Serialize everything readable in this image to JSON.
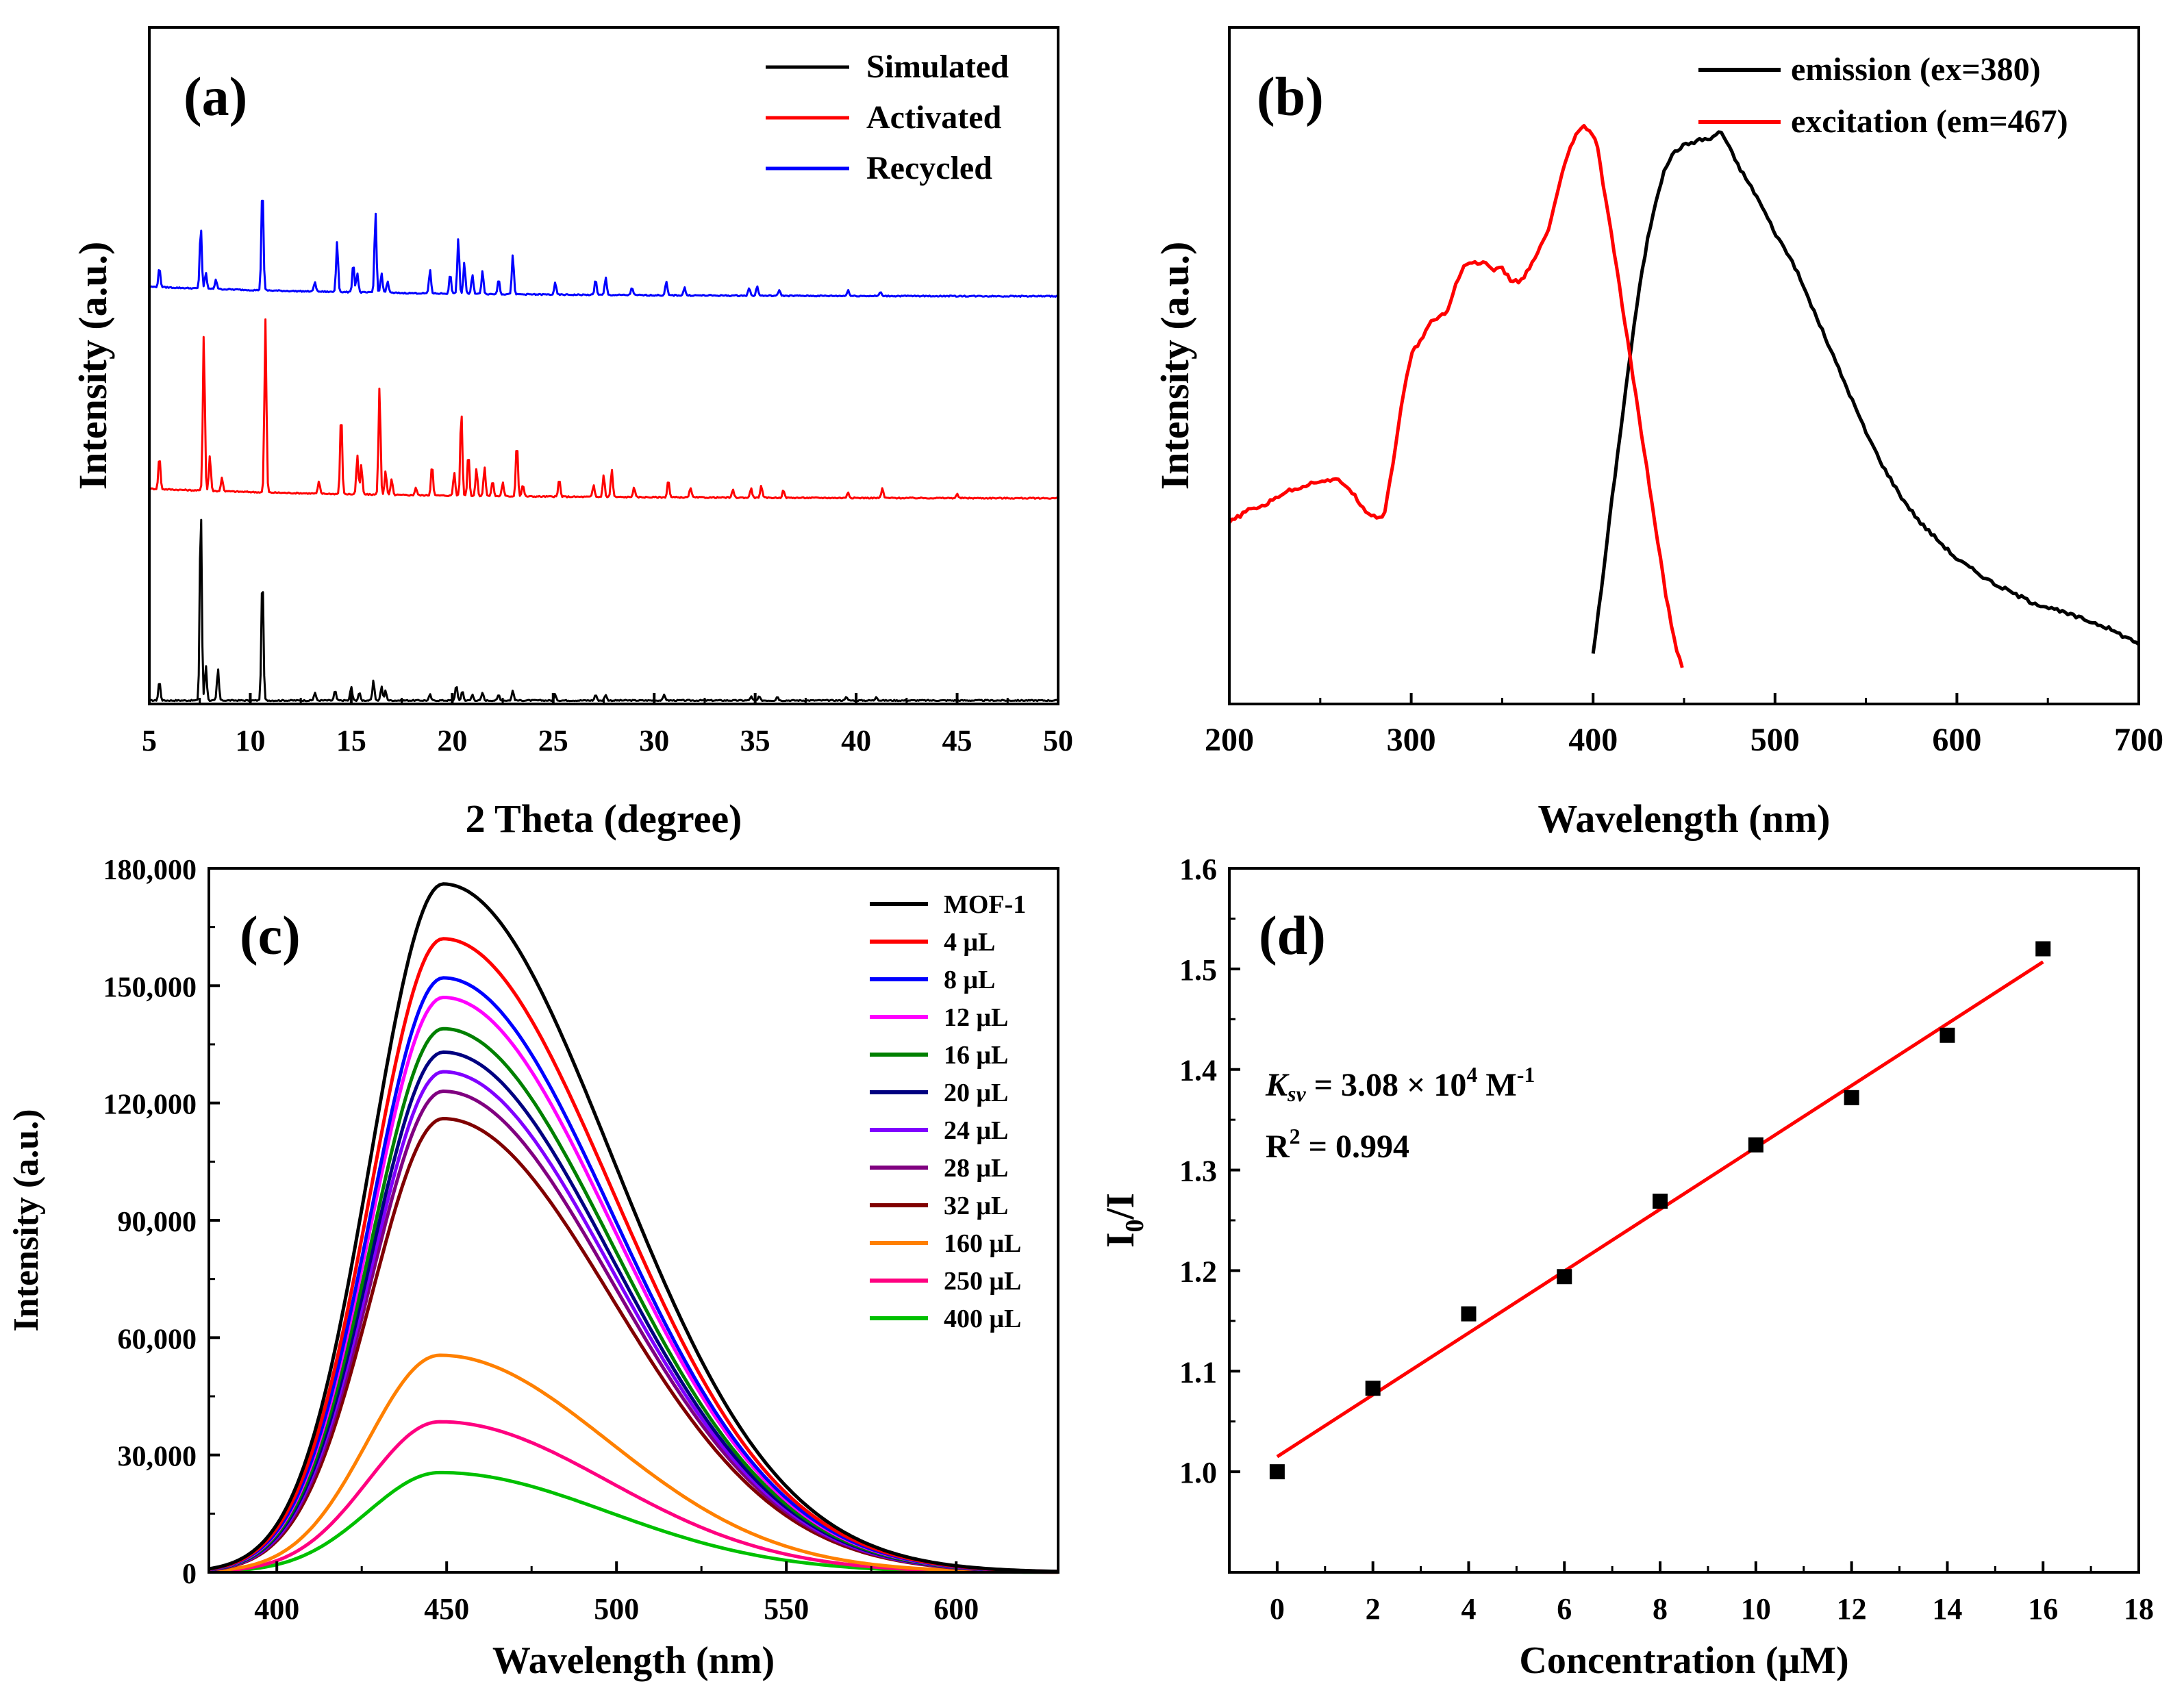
{
  "chart_data": [
    {
      "panel_label": "(a)",
      "type": "line",
      "title": "",
      "xlabel": "2 Theta (degree)",
      "ylabel": "Intensity (a.u.)",
      "xlim": [
        5,
        50
      ],
      "ylim": [
        0,
        3.45
      ],
      "x_ticks": [
        "5",
        "10",
        "15",
        "20",
        "25",
        "30",
        "35",
        "40",
        "45",
        "50"
      ],
      "y_ticks_shown": false,
      "legend_position": "top-right",
      "series": [
        {
          "name": "Simulated",
          "color": "#000000",
          "offset": 0.0,
          "peak_height_max": 1.0,
          "peaks": [
            [
              5.5,
              0.1
            ],
            [
              7.55,
              1.0
            ],
            [
              7.8,
              0.18
            ],
            [
              8.4,
              0.16
            ],
            [
              10.6,
              0.66
            ],
            [
              13.2,
              0.04
            ],
            [
              14.2,
              0.05
            ],
            [
              15.0,
              0.07
            ],
            [
              15.4,
              0.04
            ],
            [
              16.1,
              0.1
            ],
            [
              16.5,
              0.07
            ],
            [
              16.7,
              0.05
            ],
            [
              18.9,
              0.03
            ],
            [
              20.2,
              0.08
            ],
            [
              20.5,
              0.05
            ],
            [
              21.0,
              0.03
            ],
            [
              21.5,
              0.04
            ],
            [
              22.3,
              0.03
            ],
            [
              23.0,
              0.05
            ],
            [
              25.1,
              0.03
            ],
            [
              27.1,
              0.03
            ],
            [
              27.6,
              0.03
            ],
            [
              30.5,
              0.03
            ],
            [
              34.8,
              0.02
            ],
            [
              35.2,
              0.02
            ],
            [
              36.1,
              0.02
            ],
            [
              39.5,
              0.02
            ],
            [
              41.0,
              0.02
            ]
          ]
        },
        {
          "name": "Activated",
          "color": "#ff0000",
          "offset": 1.03,
          "peak_height_max": 0.88,
          "peaks": [
            [
              5.5,
              0.17
            ],
            [
              7.7,
              0.8
            ],
            [
              8.0,
              0.18
            ],
            [
              8.6,
              0.07
            ],
            [
              10.75,
              0.88
            ],
            [
              13.4,
              0.06
            ],
            [
              14.5,
              0.42
            ],
            [
              15.3,
              0.2
            ],
            [
              15.5,
              0.15
            ],
            [
              16.4,
              0.55
            ],
            [
              16.7,
              0.12
            ],
            [
              17.0,
              0.08
            ],
            [
              18.2,
              0.04
            ],
            [
              19.0,
              0.16
            ],
            [
              20.1,
              0.12
            ],
            [
              20.45,
              0.44
            ],
            [
              20.8,
              0.22
            ],
            [
              21.2,
              0.14
            ],
            [
              21.6,
              0.15
            ],
            [
              22.0,
              0.08
            ],
            [
              22.5,
              0.07
            ],
            [
              23.2,
              0.28
            ],
            [
              23.5,
              0.06
            ],
            [
              25.3,
              0.09
            ],
            [
              27.0,
              0.06
            ],
            [
              27.5,
              0.11
            ],
            [
              27.9,
              0.14
            ],
            [
              29.0,
              0.05
            ],
            [
              30.7,
              0.09
            ],
            [
              31.8,
              0.05
            ],
            [
              33.9,
              0.04
            ],
            [
              34.8,
              0.05
            ],
            [
              35.3,
              0.06
            ],
            [
              36.4,
              0.04
            ],
            [
              39.6,
              0.03
            ],
            [
              41.3,
              0.05
            ],
            [
              45.0,
              0.02
            ]
          ]
        },
        {
          "name": "Recycled",
          "color": "#0000ff",
          "offset": 2.06,
          "peak_height_max": 0.55,
          "peaks": [
            [
              5.5,
              0.1
            ],
            [
              7.55,
              0.32
            ],
            [
              7.8,
              0.08
            ],
            [
              8.3,
              0.05
            ],
            [
              10.6,
              0.55
            ],
            [
              13.2,
              0.05
            ],
            [
              14.3,
              0.26
            ],
            [
              15.1,
              0.15
            ],
            [
              15.3,
              0.1
            ],
            [
              16.2,
              0.41
            ],
            [
              16.5,
              0.1
            ],
            [
              16.8,
              0.06
            ],
            [
              18.9,
              0.12
            ],
            [
              19.9,
              0.1
            ],
            [
              20.3,
              0.28
            ],
            [
              20.6,
              0.16
            ],
            [
              21.0,
              0.1
            ],
            [
              21.5,
              0.12
            ],
            [
              22.3,
              0.08
            ],
            [
              23.0,
              0.2
            ],
            [
              25.1,
              0.06
            ],
            [
              27.1,
              0.08
            ],
            [
              27.6,
              0.09
            ],
            [
              28.9,
              0.04
            ],
            [
              30.6,
              0.07
            ],
            [
              31.5,
              0.04
            ],
            [
              34.7,
              0.04
            ],
            [
              35.1,
              0.05
            ],
            [
              36.2,
              0.03
            ],
            [
              39.6,
              0.03
            ],
            [
              41.2,
              0.02
            ]
          ]
        }
      ]
    },
    {
      "panel_label": "(b)",
      "type": "line",
      "title": "",
      "xlabel": "Wavelength (nm)",
      "ylabel": "Intensity (a.u.)",
      "xlim": [
        200,
        700
      ],
      "ylim": [
        0,
        1.12
      ],
      "x_ticks": [
        "200",
        "300",
        "400",
        "500",
        "600",
        "700"
      ],
      "y_ticks_shown": false,
      "legend_position": "top-right",
      "series": [
        {
          "name": "emission (ex=380)",
          "color": "#000000",
          "x": [
            400,
            405,
            410,
            415,
            420,
            425,
            430,
            435,
            440,
            445,
            450,
            455,
            460,
            465,
            470,
            475,
            480,
            490,
            500,
            510,
            520,
            530,
            540,
            550,
            560,
            570,
            580,
            600,
            620,
            640,
            660,
            680,
            700
          ],
          "y": [
            0.085,
            0.2,
            0.33,
            0.45,
            0.57,
            0.68,
            0.77,
            0.84,
            0.89,
            0.915,
            0.925,
            0.93,
            0.935,
            0.935,
            0.95,
            0.92,
            0.89,
            0.84,
            0.78,
            0.73,
            0.66,
            0.59,
            0.52,
            0.45,
            0.39,
            0.34,
            0.3,
            0.24,
            0.2,
            0.17,
            0.15,
            0.13,
            0.1
          ]
        },
        {
          "name": "excitation (em=467)",
          "color": "#ff0000",
          "x": [
            200,
            210,
            220,
            230,
            240,
            250,
            260,
            265,
            270,
            275,
            280,
            285,
            290,
            295,
            300,
            305,
            310,
            320,
            325,
            330,
            335,
            340,
            345,
            350,
            355,
            360,
            365,
            370,
            375,
            380,
            385,
            390,
            395,
            398,
            402,
            405,
            410,
            415,
            420,
            425,
            430,
            435,
            440,
            445,
            450
          ],
          "y": [
            0.3,
            0.32,
            0.33,
            0.35,
            0.36,
            0.37,
            0.37,
            0.36,
            0.34,
            0.32,
            0.31,
            0.31,
            0.4,
            0.5,
            0.58,
            0.6,
            0.63,
            0.65,
            0.7,
            0.73,
            0.73,
            0.73,
            0.72,
            0.72,
            0.7,
            0.7,
            0.72,
            0.75,
            0.78,
            0.84,
            0.9,
            0.94,
            0.955,
            0.95,
            0.93,
            0.87,
            0.78,
            0.68,
            0.58,
            0.48,
            0.38,
            0.28,
            0.18,
            0.1,
            0.05
          ]
        }
      ]
    },
    {
      "panel_label": "(c)",
      "type": "line",
      "title": "",
      "xlabel": "Wavelength (nm)",
      "ylabel": "Intensity (a.u.)",
      "xlim": [
        380,
        630
      ],
      "ylim": [
        0,
        180000
      ],
      "x_ticks": [
        "400",
        "450",
        "500",
        "550",
        "600"
      ],
      "y_ticks": [
        "0",
        "30,000",
        "60,000",
        "90,000",
        "120,000",
        "150,000",
        "180,000"
      ],
      "legend_position": "top-right",
      "curve_shape": "asymmetric peak; rise width 30 nm, decay width 70 nm",
      "series": [
        {
          "name": "MOF-1",
          "color": "#000000",
          "peak_x": 449,
          "peak_y": 176000
        },
        {
          "name": "4 μL",
          "color": "#ff0000",
          "peak_x": 449,
          "peak_y": 162000
        },
        {
          "name": "8 μL",
          "color": "#0000ff",
          "peak_x": 449,
          "peak_y": 152000
        },
        {
          "name": "12 μL",
          "color": "#ff00ff",
          "peak_x": 449,
          "peak_y": 147000
        },
        {
          "name": "16 μL",
          "color": "#008000",
          "peak_x": 449,
          "peak_y": 139000
        },
        {
          "name": "20 μL",
          "color": "#000080",
          "peak_x": 449,
          "peak_y": 133000
        },
        {
          "name": "24 μL",
          "color": "#8000ff",
          "peak_x": 449,
          "peak_y": 128000
        },
        {
          "name": "28 μL",
          "color": "#800080",
          "peak_x": 449,
          "peak_y": 123000
        },
        {
          "name": "32 μL",
          "color": "#800000",
          "peak_x": 449,
          "peak_y": 116000
        },
        {
          "name": "160 μL",
          "color": "#ff8000",
          "peak_x": 448,
          "peak_y": 55500
        },
        {
          "name": "250 μL",
          "color": "#ff0080",
          "peak_x": 448,
          "peak_y": 38500
        },
        {
          "name": "400 μL",
          "color": "#00c000",
          "peak_x": 448,
          "peak_y": 25500
        }
      ]
    },
    {
      "panel_label": "(d)",
      "type": "scatter",
      "title": "",
      "xlabel": "Concentration (μM)",
      "ylabel": "I0/I",
      "xlim": [
        -1,
        18
      ],
      "ylim": [
        0.9,
        1.6
      ],
      "x_ticks": [
        "0",
        "2",
        "4",
        "6",
        "8",
        "10",
        "12",
        "14",
        "16",
        "18"
      ],
      "y_ticks": [
        "1.0",
        "1.1",
        "1.2",
        "1.3",
        "1.4",
        "1.5",
        "1.6"
      ],
      "series": [
        {
          "name": "data",
          "color": "#000000",
          "x": [
            0,
            2,
            4,
            6,
            8,
            10,
            12,
            14,
            16
          ],
          "y": [
            1.0,
            1.083,
            1.157,
            1.194,
            1.269,
            1.325,
            1.372,
            1.434,
            1.52
          ]
        },
        {
          "name": "linear fit",
          "color": "#ff0000",
          "x": [
            0,
            16
          ],
          "y": [
            1.015,
            1.507
          ]
        }
      ],
      "annotations": {
        "ksv_symbol": "K",
        "ksv_sub": "sv",
        "ksv_value": " = 3.08 × 10",
        "ksv_exp": "4",
        "ksv_unit": " M",
        "ksv_unit_exp": "-1",
        "r2_text": "R",
        "r2_exp": "2",
        "r2_value": " =  0.994"
      }
    }
  ]
}
